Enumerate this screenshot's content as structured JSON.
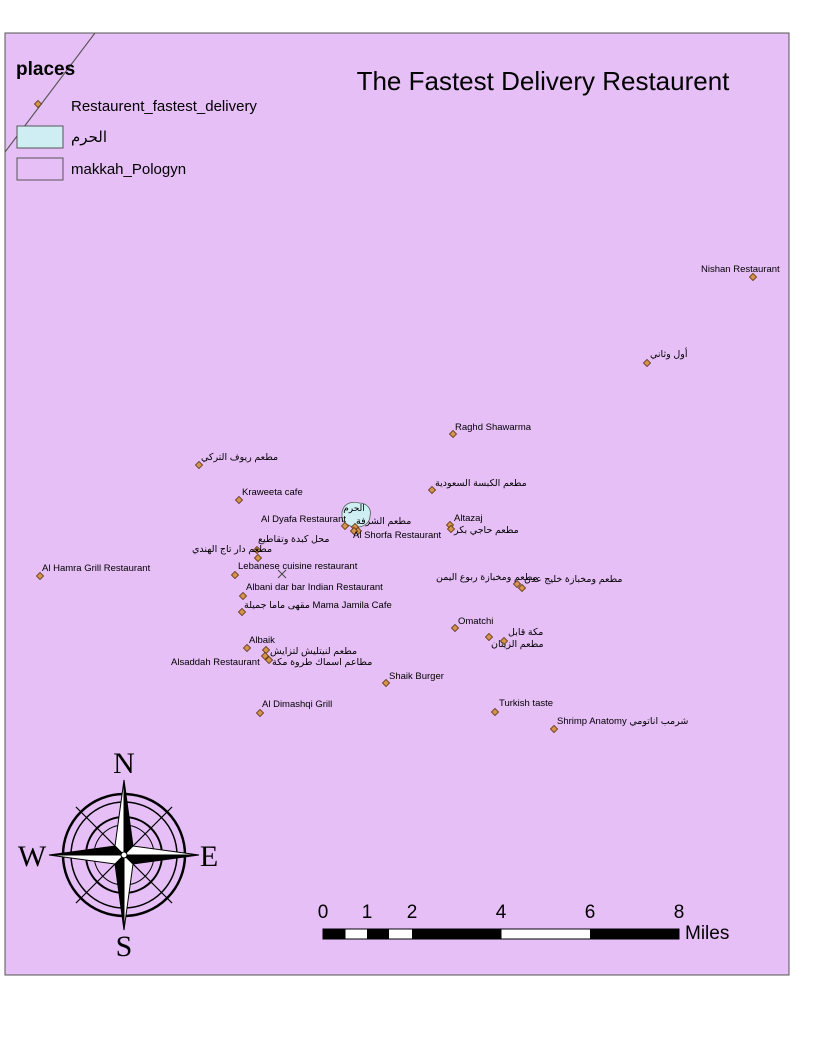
{
  "title": "The Fastest Delivery Restaurent",
  "colors": {
    "polygon_fill": "#e7bff7",
    "haram_fill": "#cfeef3",
    "point_fill": "#d6924a",
    "point_stroke": "#5a3410",
    "frame": "#555555"
  },
  "legend": {
    "heading": "places",
    "items": [
      {
        "label": "Restaurent_fastest_delivery",
        "symbol": "point"
      },
      {
        "label": "الحرم",
        "symbol": "haram-box"
      },
      {
        "label": "makkah_Pologyn",
        "symbol": "polygon-box"
      }
    ]
  },
  "haram_label": "الحرم",
  "places": [
    {
      "name": "Nishan Restaurant"
    },
    {
      "name": "أول وثاني"
    },
    {
      "name": "Raghd Shawarma"
    },
    {
      "name": "مطعم ريوف التركي"
    },
    {
      "name": "مطعم الكبسة السعودية"
    },
    {
      "name": "Kraweeta cafe"
    },
    {
      "name": "Al Dyafa Restaurant"
    },
    {
      "name": "مطعم الشرفة"
    },
    {
      "name": "Al Shorfa Restaurant"
    },
    {
      "name": "Altazaj"
    },
    {
      "name": "مطعم حاجي بكر"
    },
    {
      "name": "محل كبدة وتقاطيع"
    },
    {
      "name": "مطعم دار تاج الهندي"
    },
    {
      "name": "Lebanese cuisine restaurant"
    },
    {
      "name": "Al Hamra Grill Restaurant"
    },
    {
      "name": "مطعم ومخبازة ربوع اليمن"
    },
    {
      "name": "مطعم ومخبازة خليج عدن"
    },
    {
      "name": "Albani dar bar Indian Restaurant"
    },
    {
      "name": "مقهى ماما جميلة Mama Jamila Cafe"
    },
    {
      "name": "Omatchi"
    },
    {
      "name": "مكة قابل"
    },
    {
      "name": "مطعم الزيتان"
    },
    {
      "name": "Albaik"
    },
    {
      "name": "مطعم لنيتليش لتزايش"
    },
    {
      "name": "Alsaddah Restaurant"
    },
    {
      "name": "مطاعم اسماك طروة مكة"
    },
    {
      "name": "Shaik Burger"
    },
    {
      "name": "Al Dimashqi Grill"
    },
    {
      "name": "Turkish taste"
    },
    {
      "name": "Shrimp Anatomy شرمب اناتومي"
    }
  ],
  "compass": {
    "north": "N",
    "south": "S",
    "east": "E",
    "west": "W"
  },
  "scalebar": {
    "ticks": [
      "0",
      "1",
      "2",
      "4",
      "6",
      "8"
    ],
    "unit": "Miles"
  }
}
